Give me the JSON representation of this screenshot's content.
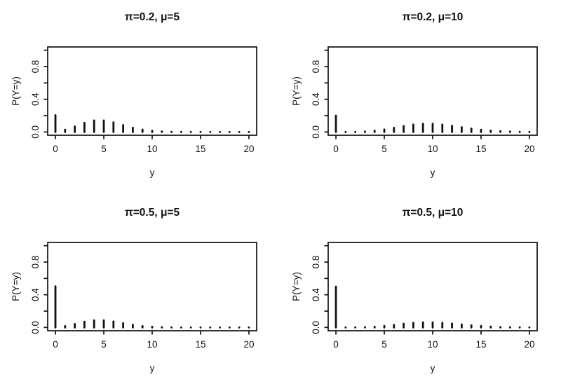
{
  "figure": {
    "background": "#ffffff",
    "ink": "#111111",
    "description": "2x2 grid of spike plots of zero-inflated Poisson probability mass functions"
  },
  "chart_data": [
    {
      "type": "bar",
      "title": "π=0.2, μ=5",
      "xlabel": "y",
      "ylabel": "P(Y=y)",
      "xlim": [
        0,
        20
      ],
      "ylim": [
        0,
        1
      ],
      "x_ticks": [
        0,
        5,
        10,
        15,
        20
      ],
      "x_tick_labels": [
        "0",
        "5",
        "10",
        "15",
        "20"
      ],
      "y_ticks": [
        0,
        0.2,
        0.4,
        0.6,
        0.8,
        1
      ],
      "y_tick_labels": [
        "0.0",
        "",
        "0.4",
        "",
        "0.8",
        ""
      ],
      "grid": "off",
      "legend": "none",
      "x": [
        0,
        1,
        2,
        3,
        4,
        5,
        6,
        7,
        8,
        9,
        10,
        11,
        12,
        13,
        14,
        15,
        16,
        17,
        18,
        19,
        20
      ],
      "values": [
        0.20539,
        0.02695,
        0.06738,
        0.1123,
        0.14037,
        0.14037,
        0.11698,
        0.08356,
        0.05222,
        0.02901,
        0.01451,
        0.00659,
        0.00275,
        0.00106,
        0.00038,
        0.00013,
        4e-05,
        1e-05,
        0,
        0,
        0
      ]
    },
    {
      "type": "bar",
      "title": "π=0.2, μ=10",
      "xlabel": "y",
      "ylabel": "P(Y=y)",
      "xlim": [
        0,
        20
      ],
      "ylim": [
        0,
        1
      ],
      "x_ticks": [
        0,
        5,
        10,
        15,
        20
      ],
      "x_tick_labels": [
        "0",
        "5",
        "10",
        "15",
        "20"
      ],
      "y_ticks": [
        0,
        0.2,
        0.4,
        0.6,
        0.8,
        1
      ],
      "y_tick_labels": [
        "0.0",
        "",
        "0.4",
        "",
        "0.8",
        ""
      ],
      "grid": "off",
      "legend": "none",
      "x": [
        0,
        1,
        2,
        3,
        4,
        5,
        6,
        7,
        8,
        9,
        10,
        11,
        12,
        13,
        14,
        15,
        16,
        17,
        18,
        19,
        20
      ],
      "values": [
        0.20004,
        0.00036,
        0.00182,
        0.00605,
        0.01513,
        0.03027,
        0.05044,
        0.07206,
        0.09008,
        0.10009,
        0.10009,
        0.09099,
        0.07582,
        0.05833,
        0.04166,
        0.02777,
        0.01736,
        0.01021,
        0.00567,
        0.00299,
        0.00149
      ]
    },
    {
      "type": "bar",
      "title": "π=0.5, μ=5",
      "xlabel": "y",
      "ylabel": "P(Y=y)",
      "xlim": [
        0,
        20
      ],
      "ylim": [
        0,
        1
      ],
      "x_ticks": [
        0,
        5,
        10,
        15,
        20
      ],
      "x_tick_labels": [
        "0",
        "5",
        "10",
        "15",
        "20"
      ],
      "y_ticks": [
        0,
        0.2,
        0.4,
        0.6,
        0.8,
        1
      ],
      "y_tick_labels": [
        "0.0",
        "",
        "0.4",
        "",
        "0.8",
        ""
      ],
      "grid": "off",
      "legend": "none",
      "x": [
        0,
        1,
        2,
        3,
        4,
        5,
        6,
        7,
        8,
        9,
        10,
        11,
        12,
        13,
        14,
        15,
        16,
        17,
        18,
        19,
        20
      ],
      "values": [
        0.50337,
        0.01684,
        0.04211,
        0.07019,
        0.08773,
        0.08773,
        0.07311,
        0.05222,
        0.03264,
        0.01813,
        0.00907,
        0.00412,
        0.00172,
        0.00066,
        0.00024,
        8e-05,
        2e-05,
        1e-05,
        0,
        0,
        0
      ]
    },
    {
      "type": "bar",
      "title": "π=0.5, μ=10",
      "xlabel": "y",
      "ylabel": "P(Y=y)",
      "xlim": [
        0,
        20
      ],
      "ylim": [
        0,
        1
      ],
      "x_ticks": [
        0,
        5,
        10,
        15,
        20
      ],
      "x_tick_labels": [
        "0",
        "5",
        "10",
        "15",
        "20"
      ],
      "y_ticks": [
        0,
        0.2,
        0.4,
        0.6,
        0.8,
        1
      ],
      "y_tick_labels": [
        "0.0",
        "",
        "0.4",
        "",
        "0.8",
        ""
      ],
      "grid": "off",
      "legend": "none",
      "x": [
        0,
        1,
        2,
        3,
        4,
        5,
        6,
        7,
        8,
        9,
        10,
        11,
        12,
        13,
        14,
        15,
        16,
        17,
        18,
        19,
        20
      ],
      "values": [
        0.50002,
        0.00023,
        0.00113,
        0.00378,
        0.00946,
        0.01892,
        0.03153,
        0.04504,
        0.0563,
        0.06256,
        0.06256,
        0.05687,
        0.04739,
        0.03645,
        0.02604,
        0.01736,
        0.01085,
        0.00638,
        0.00355,
        0.00187,
        0.00093
      ]
    }
  ]
}
